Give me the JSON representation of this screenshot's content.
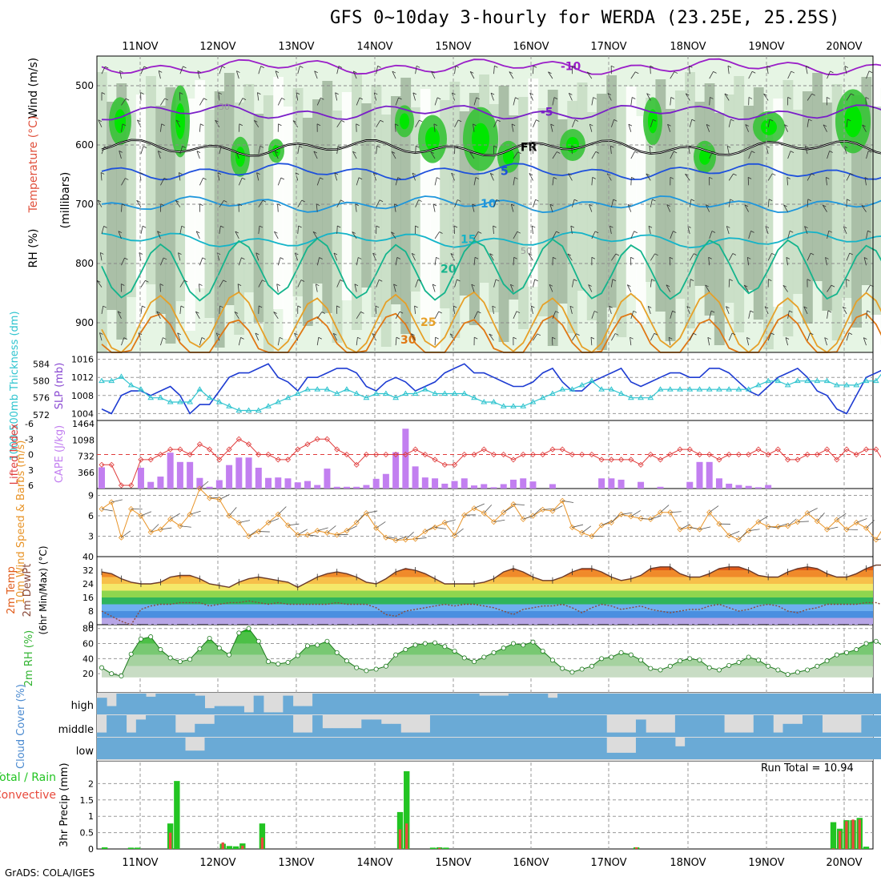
{
  "title": "GFS 0~10day 3-hourly for WERDA (23.25E, 25.25S)",
  "credit": "GrADS: COLA/IGES",
  "dates": [
    "11NOV",
    "12NOV",
    "13NOV",
    "14NOV",
    "15NOV",
    "16NOV",
    "17NOV",
    "18NOV",
    "19NOV",
    "20NOV"
  ],
  "colors": {
    "rh_light": "#e6f5e4",
    "rh_mid": "#c6dcc3",
    "rh_dark": "#9fb59c",
    "rh_green": "#37c337",
    "rh_bright": "#00e600",
    "pressure_line": "#1e3cd2",
    "thickness_line": "#2fc4cf",
    "lifted_index": "#e03c3c",
    "cape_bar": "#c27ff0",
    "wind_speed": "#e89428",
    "rh2m": "#32b432",
    "cloud": "#6aaad6",
    "precip_total": "#22c422",
    "precip_conv": "#e84a3c"
  },
  "panels": {
    "upper_air": {
      "ylabel_rh": "RH (%)",
      "ylabel_temp": "Temperature (°C)",
      "ylabel_wind": "Wind (m/s)",
      "ylabel_p": "(millibars)",
      "yticks": [
        500,
        600,
        700,
        800,
        900
      ],
      "isotherms": [
        {
          "label": "-10",
          "value": -10,
          "color": "#9a1ec8"
        },
        {
          "label": "-5",
          "value": -5,
          "color": "#7a1ec8"
        },
        {
          "label": "FR",
          "value": 0,
          "color": "#000000"
        },
        {
          "label": "5",
          "value": 5,
          "color": "#1e50dc"
        },
        {
          "label": "10",
          "value": 10,
          "color": "#1e96dc"
        },
        {
          "label": "15",
          "value": 15,
          "color": "#14b4c8"
        },
        {
          "label": "20",
          "value": 20,
          "color": "#14b48c"
        },
        {
          "label": "25",
          "value": 25,
          "color": "#e6a028"
        },
        {
          "label": "30",
          "value": 30,
          "color": "#e07814"
        }
      ],
      "rh_labels": [
        "30",
        "50"
      ]
    },
    "slp": {
      "ylabel_thk": "1000-500mb Thickness (dm)",
      "ylabel_slp": "SLP (mb)",
      "thk_ticks": [
        572,
        576,
        580,
        584
      ],
      "slp_ticks": [
        1004,
        1008,
        1012,
        1016
      ],
      "slp_range": [
        1003,
        1017
      ],
      "thk_range": [
        571.2,
        586.2
      ],
      "slp_values": [
        1005,
        1004,
        1008,
        1009,
        1009,
        1008,
        1009,
        1010,
        1008,
        1004,
        1006,
        1006,
        1009,
        1012,
        1013,
        1013,
        1014,
        1015,
        1012,
        1011,
        1009,
        1012,
        1012,
        1013,
        1014,
        1014,
        1013,
        1010,
        1009,
        1011,
        1012,
        1011,
        1009,
        1010,
        1011,
        1013,
        1014,
        1015,
        1013,
        1013,
        1012,
        1011,
        1010,
        1010,
        1011,
        1013,
        1014,
        1011,
        1009,
        1009,
        1011,
        1012,
        1013,
        1014,
        1011,
        1010,
        1011,
        1012,
        1013,
        1013,
        1012,
        1012,
        1014,
        1014,
        1013,
        1011,
        1009,
        1008,
        1010,
        1012,
        1013,
        1014,
        1012,
        1009,
        1008,
        1005,
        1004,
        1008,
        1012,
        1013,
        1014,
        1014,
        1013,
        1011,
        1009,
        1008,
        1006,
        1004,
        1007,
        1010,
        1010,
        1011,
        1011
      ],
      "thk_values": [
        580,
        580,
        581,
        579,
        578,
        576,
        576,
        575,
        575,
        575,
        578,
        576,
        575,
        574,
        573,
        573,
        573,
        574,
        575,
        576,
        577,
        578,
        578,
        578,
        577,
        578,
        577,
        576,
        577,
        577,
        576,
        577,
        577,
        578,
        577,
        577,
        577,
        577,
        576,
        575,
        575,
        574,
        574,
        574,
        575,
        576,
        577,
        578,
        578,
        579,
        580,
        578,
        578,
        577,
        576,
        576,
        576,
        578,
        578,
        578,
        578,
        578,
        578,
        578,
        578,
        578,
        578,
        579,
        580,
        580,
        579,
        580,
        580,
        580,
        580,
        579,
        579,
        579,
        580,
        580,
        583,
        584,
        585,
        583,
        582,
        581,
        582,
        582,
        583,
        585,
        584,
        581,
        582,
        580
      ]
    },
    "cape": {
      "ylabel_li": "Lifted Index",
      "ylabel_cape": "CAPE (J/kg)",
      "li_ticks": [
        "-6",
        "-3",
        "0",
        "3",
        "6"
      ],
      "cape_ticks": [
        "1464",
        "1098",
        "732",
        "366"
      ],
      "li_values": [
        2,
        2,
        6,
        6,
        1,
        1,
        0,
        -1,
        -1,
        0,
        -2,
        -1,
        1,
        -1,
        -3,
        -2,
        0,
        0,
        1,
        1,
        -1,
        -2,
        -3,
        -3,
        -1,
        0,
        2,
        0,
        0,
        0,
        0,
        0,
        -1,
        0,
        1,
        2,
        2,
        0,
        0,
        -1,
        0,
        0,
        1,
        0,
        0,
        0,
        -1,
        -1,
        0,
        0,
        0,
        1,
        1,
        1,
        1,
        2,
        0,
        1,
        0,
        -1,
        -1,
        0,
        0,
        1,
        0,
        0,
        0,
        -1,
        0,
        -1,
        1,
        1,
        0,
        0,
        -1,
        1,
        -1,
        0,
        -1,
        -1,
        2,
        2,
        6,
        6,
        -3,
        -3,
        -3,
        -4,
        0,
        0,
        0,
        0,
        1,
        1
      ],
      "cape_values": [
        480,
        0,
        0,
        0,
        470,
        150,
        270,
        810,
        600,
        600,
        240,
        40,
        190,
        530,
        700,
        700,
        470,
        240,
        250,
        230,
        140,
        170,
        80,
        450,
        40,
        40,
        40,
        80,
        220,
        330,
        820,
        1350,
        500,
        250,
        230,
        110,
        170,
        230,
        70,
        100,
        30,
        100,
        200,
        230,
        160,
        0,
        100,
        0,
        0,
        0,
        0,
        230,
        230,
        200,
        0,
        150,
        0,
        40,
        0,
        0,
        150,
        600,
        600,
        230,
        110,
        80,
        60,
        30,
        80,
        0,
        0,
        0,
        0,
        0,
        0,
        0,
        0,
        0,
        0,
        0,
        0,
        0,
        0,
        0,
        0,
        300,
        300,
        230,
        100,
        0,
        150,
        100,
        40,
        70
      ]
    },
    "wind10m": {
      "ylabel": "10m Wind Speed & Barbs (m/s)",
      "yticks": [
        "3",
        "6",
        "9"
      ],
      "yrange": [
        0,
        10
      ],
      "speed_values": [
        7.0,
        8.0,
        2.8,
        7.0,
        6.0,
        3.6,
        4.0,
        5.5,
        4.5,
        6.2,
        10.0,
        8.6,
        8.4,
        6.0,
        5.0,
        3.0,
        3.7,
        5.0,
        6.2,
        4.6,
        3.2,
        3.2,
        3.8,
        3.5,
        3.2,
        3.8,
        5.0,
        6.4,
        4.2,
        2.8,
        2.4,
        2.5,
        2.6,
        3.7,
        4.3,
        5.0,
        3.1,
        6.1,
        7.1,
        6.4,
        5.1,
        6.5,
        7.7,
        5.5,
        6.0,
        6.9,
        6.7,
        8.2,
        4.3,
        3.5,
        3.0,
        4.6,
        5.0,
        6.2,
        5.9,
        5.6,
        5.5,
        6.5,
        6.5,
        4.0,
        4.3,
        4.0,
        6.5,
        4.8,
        3.1,
        2.5,
        3.8,
        5.1,
        4.4,
        4.4,
        4.5,
        5.1,
        6.4,
        5.2,
        4.0,
        5.4,
        4.0,
        5.0,
        4.2,
        2.5,
        4.8,
        5.5,
        4.1,
        6.2,
        5.8,
        4.9,
        5.4,
        5.7,
        4.9,
        1.6,
        2.5,
        3.9,
        5.4,
        5.2
      ]
    },
    "temp2m": {
      "ylabel_t": "2m Temp",
      "ylabel_d": "2m DewPt",
      "ylabel_mm": "(6hr Min/Max) (°C)",
      "yticks": [
        "0",
        "8",
        "16",
        "24",
        "32",
        "40"
      ],
      "temp_values": [
        31,
        30,
        27,
        25,
        24,
        24,
        25,
        28,
        29,
        29,
        27,
        24,
        23,
        22,
        25,
        27,
        28,
        27,
        26,
        25,
        22,
        25,
        28,
        30,
        31,
        30,
        28,
        25,
        24,
        27,
        31,
        33,
        32,
        30,
        27,
        24,
        24,
        24,
        24,
        25,
        27,
        31,
        33,
        31,
        28,
        26,
        26,
        28,
        31,
        33,
        33,
        31,
        28,
        26,
        27,
        29,
        33,
        34,
        34,
        30,
        28,
        28,
        30,
        33,
        34,
        34,
        32,
        29,
        28,
        28,
        31,
        33,
        34,
        33,
        30,
        28,
        28,
        30,
        33,
        35,
        35,
        32,
        28,
        28,
        30,
        34,
        36,
        36,
        33,
        28,
        27,
        27,
        26,
        27
      ],
      "dew_values": [
        8,
        5,
        2,
        0,
        9,
        11,
        12,
        12,
        13,
        13,
        13,
        11,
        12,
        13,
        13,
        14,
        13,
        12,
        13,
        12,
        12,
        12,
        12,
        12,
        13,
        12,
        12,
        12,
        10,
        6,
        5,
        8,
        9,
        10,
        11,
        12,
        11,
        12,
        12,
        11,
        10,
        8,
        6,
        9,
        10,
        11,
        11,
        12,
        10,
        7,
        10,
        12,
        11,
        9,
        10,
        11,
        9,
        8,
        7,
        8,
        9,
        9,
        11,
        12,
        10,
        8,
        9,
        11,
        12,
        11,
        8,
        7,
        9,
        10,
        12,
        12,
        12,
        12,
        13,
        13,
        11,
        11,
        11,
        12,
        12,
        11,
        10,
        10,
        11,
        12,
        12,
        12,
        12,
        13
      ]
    },
    "rh2m": {
      "ylabel": "2m RH (%)",
      "yticks": [
        "20",
        "40",
        "60",
        "80"
      ],
      "rh_values": [
        28,
        20,
        17,
        46,
        66,
        69,
        52,
        41,
        36,
        39,
        53,
        67,
        54,
        45,
        74,
        80,
        63,
        36,
        33,
        35,
        44,
        57,
        58,
        63,
        48,
        37,
        28,
        24,
        26,
        30,
        45,
        52,
        58,
        60,
        61,
        56,
        50,
        41,
        36,
        42,
        48,
        54,
        60,
        58,
        62,
        50,
        38,
        27,
        22,
        26,
        30,
        40,
        42,
        48,
        45,
        38,
        27,
        25,
        30,
        37,
        40,
        38,
        28,
        25,
        31,
        35,
        42,
        38,
        30,
        25,
        19,
        22,
        25,
        30,
        37,
        45,
        48,
        52,
        60,
        63,
        55,
        48,
        37,
        28,
        31,
        38,
        53,
        61,
        60,
        54,
        47,
        41,
        45,
        42
      ]
    },
    "cloud": {
      "ylabel": "Cloud Cover (%)",
      "levels": [
        "high",
        "middle",
        "low"
      ],
      "high_values": [
        80,
        40,
        100,
        100,
        100,
        85,
        100,
        100,
        100,
        100,
        90,
        30,
        40,
        40,
        40,
        10,
        90,
        10,
        10,
        90,
        40,
        40,
        100,
        100,
        100,
        100,
        100,
        100,
        100,
        100,
        100,
        100,
        100,
        100,
        100,
        100,
        100,
        100,
        100,
        90,
        90,
        90,
        100,
        100,
        100,
        100,
        80,
        100,
        100,
        100,
        100,
        100,
        100,
        100,
        100,
        100,
        100,
        100,
        100,
        100,
        100,
        100,
        100,
        100,
        100,
        100,
        100,
        100,
        100,
        100,
        100,
        100,
        100,
        100,
        100,
        100,
        100,
        100,
        100,
        100,
        100,
        100,
        100,
        100,
        100,
        100,
        100,
        100,
        40,
        60,
        80,
        40,
        20,
        40
      ],
      "mid_values": [
        20,
        100,
        100,
        20,
        80,
        100,
        100,
        100,
        20,
        20,
        60,
        60,
        100,
        100,
        100,
        100,
        100,
        100,
        100,
        100,
        20,
        20,
        100,
        40,
        40,
        40,
        40,
        80,
        80,
        60,
        60,
        20,
        20,
        20,
        100,
        100,
        100,
        100,
        100,
        100,
        100,
        100,
        100,
        100,
        100,
        100,
        100,
        100,
        100,
        100,
        100,
        100,
        20,
        20,
        20,
        80,
        20,
        20,
        20,
        100,
        100,
        100,
        100,
        100,
        20,
        20,
        20,
        100,
        100,
        20,
        60,
        60,
        100,
        100,
        20,
        20,
        20,
        20,
        100,
        100,
        100,
        20,
        20,
        20,
        20,
        20,
        20,
        20,
        20,
        100,
        100,
        100,
        20,
        20
      ],
      "low_values": [
        100,
        100,
        100,
        100,
        100,
        100,
        100,
        100,
        100,
        40,
        40,
        100,
        100,
        100,
        100,
        100,
        100,
        100,
        100,
        100,
        100,
        100,
        100,
        100,
        100,
        100,
        100,
        100,
        100,
        100,
        100,
        100,
        100,
        100,
        100,
        100,
        100,
        100,
        100,
        100,
        100,
        100,
        100,
        100,
        100,
        100,
        100,
        100,
        100,
        100,
        100,
        100,
        30,
        30,
        30,
        100,
        100,
        100,
        100,
        60,
        100,
        100,
        100,
        100,
        100,
        100,
        100,
        100,
        100,
        100,
        100,
        100,
        100,
        100,
        100,
        100,
        100,
        100,
        100,
        100,
        100,
        100,
        100,
        100,
        100,
        100,
        100,
        100,
        100,
        100,
        100,
        100,
        100,
        100
      ]
    },
    "precip": {
      "ylabel_a": "Total / Rain",
      "ylabel_b": "Convective",
      "ylabel_c": "3hr Precip (mm)",
      "yticks": [
        "0",
        "0.5",
        "1",
        "1.5",
        "2"
      ],
      "run_total": "Run Total = 10.94",
      "total_values": [
        0.05,
        0,
        0,
        0,
        0.04,
        0.04,
        0,
        0,
        0,
        0,
        0.78,
        2.08,
        0,
        0,
        0,
        0,
        0,
        0,
        0.16,
        0.09,
        0.08,
        0.17,
        0,
        0,
        0.78,
        0,
        0,
        0,
        0,
        0,
        0,
        0,
        0,
        0,
        0,
        0,
        0,
        0,
        0,
        0,
        0,
        0,
        0,
        0,
        0,
        1.13,
        2.38,
        0,
        0,
        0,
        0.04,
        0.05,
        0.04,
        0,
        0,
        0,
        0,
        0,
        0,
        0,
        0,
        0,
        0,
        0,
        0,
        0,
        0,
        0,
        0,
        0,
        0,
        0,
        0,
        0,
        0,
        0,
        0,
        0,
        0,
        0,
        0,
        0.05,
        0,
        0,
        0,
        0,
        0,
        0,
        0,
        0,
        0,
        0,
        0,
        0,
        0,
        0,
        0,
        0,
        0,
        0,
        0,
        0,
        0,
        0,
        0,
        0,
        0,
        0,
        0,
        0,
        0,
        0.82,
        0.62,
        0.88,
        0.88,
        0.95,
        0.07
      ],
      "conv_values": [
        0,
        0,
        0,
        0,
        0,
        0,
        0,
        0,
        0,
        0,
        0.5,
        0,
        0,
        0,
        0,
        0,
        0,
        0,
        0.2,
        0,
        0,
        0.1,
        0,
        0,
        0.35,
        0,
        0,
        0,
        0,
        0,
        0,
        0,
        0,
        0,
        0,
        0,
        0,
        0,
        0,
        0,
        0,
        0,
        0,
        0,
        0,
        0.6,
        0.78,
        0,
        0,
        0,
        0,
        0.03,
        0,
        0,
        0,
        0,
        0,
        0,
        0,
        0,
        0,
        0,
        0,
        0,
        0,
        0,
        0,
        0,
        0,
        0,
        0,
        0,
        0,
        0,
        0,
        0,
        0,
        0,
        0,
        0,
        0,
        0.05,
        0,
        0,
        0,
        0,
        0,
        0,
        0,
        0,
        0,
        0,
        0,
        0,
        0,
        0,
        0,
        0,
        0,
        0,
        0,
        0,
        0,
        0,
        0,
        0,
        0,
        0,
        0,
        0,
        0,
        0.02,
        0.55,
        0.85,
        0.9,
        0.9,
        0
      ]
    }
  }
}
